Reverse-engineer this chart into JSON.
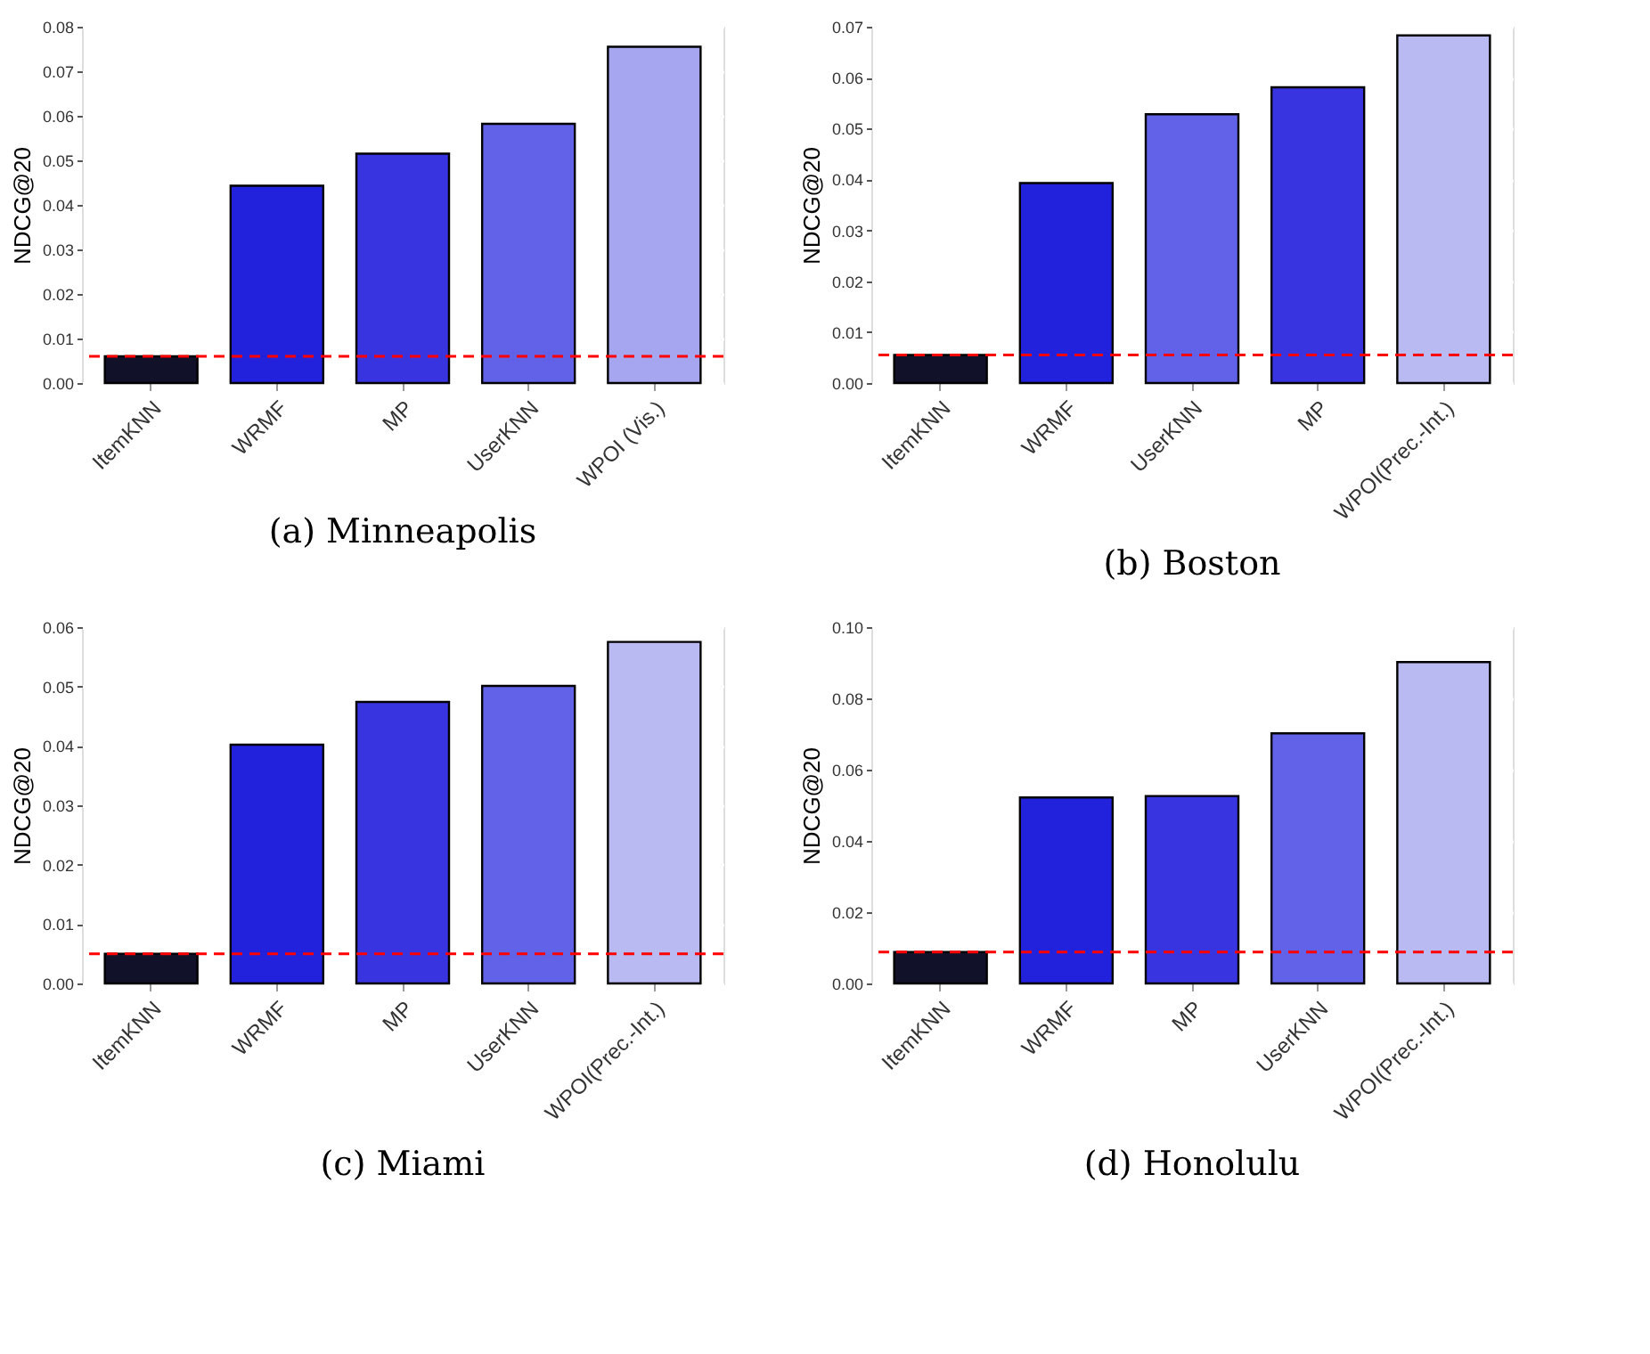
{
  "chart_data": [
    {
      "type": "bar",
      "title": "(a) Minneapolis",
      "ylabel": "NDCG@20",
      "categories": [
        "ItemKNN",
        "WRMF",
        "MP",
        "UserKNN",
        "WPOI (Vis.)"
      ],
      "values": [
        0.006,
        0.0443,
        0.0515,
        0.0582,
        0.0755
      ],
      "colors": [
        "#11112a",
        "#2222dd",
        "#3835e0",
        "#6262e8",
        "#a6a6f0"
      ],
      "ylim": [
        0,
        0.08
      ],
      "yticks": [
        {
          "value": 0,
          "label": "0.00"
        },
        {
          "value": 0.01,
          "label": "0.01"
        },
        {
          "value": 0.02,
          "label": "0.02"
        },
        {
          "value": 0.03,
          "label": "0.03"
        },
        {
          "value": 0.04,
          "label": "0.04"
        },
        {
          "value": 0.05,
          "label": "0.05"
        },
        {
          "value": 0.06,
          "label": "0.06"
        },
        {
          "value": 0.07,
          "label": "0.07"
        },
        {
          "value": 0.08,
          "label": "0.08"
        }
      ],
      "grid": "y",
      "ref_lines": [
        {
          "axis": "y",
          "value": 0.006,
          "color": "#ff0000",
          "line_style": "dashed"
        }
      ]
    },
    {
      "type": "bar",
      "title": "(b) Boston",
      "ylabel": "NDCG@20",
      "categories": [
        "ItemKNN",
        "WRMF",
        "UserKNN",
        "MP",
        "WPOI(Prec.-Int.)"
      ],
      "values": [
        0.0055,
        0.0393,
        0.0528,
        0.0581,
        0.0683
      ],
      "colors": [
        "#11112a",
        "#2222dd",
        "#6262e8",
        "#3835e0",
        "#babaf2"
      ],
      "ylim": [
        0,
        0.07
      ],
      "yticks": [
        {
          "value": 0,
          "label": "0.00"
        },
        {
          "value": 0.01,
          "label": "0.01"
        },
        {
          "value": 0.02,
          "label": "0.02"
        },
        {
          "value": 0.03,
          "label": "0.03"
        },
        {
          "value": 0.04,
          "label": "0.04"
        },
        {
          "value": 0.05,
          "label": "0.05"
        },
        {
          "value": 0.06,
          "label": "0.06"
        },
        {
          "value": 0.07,
          "label": "0.07"
        }
      ],
      "grid": "y",
      "ref_lines": [
        {
          "axis": "y",
          "value": 0.0055,
          "color": "#ff0000",
          "line_style": "dashed"
        }
      ]
    },
    {
      "type": "bar",
      "title": "(c) Miami",
      "ylabel": "NDCG@20",
      "categories": [
        "ItemKNN",
        "WRMF",
        "MP",
        "UserKNN",
        "WPOI(Prec.-Int.)"
      ],
      "values": [
        0.005,
        0.0402,
        0.0474,
        0.0501,
        0.0575
      ],
      "colors": [
        "#11112a",
        "#2222dd",
        "#3835e0",
        "#6262e8",
        "#babaf2"
      ],
      "ylim": [
        0,
        0.06
      ],
      "yticks": [
        {
          "value": 0,
          "label": "0.00"
        },
        {
          "value": 0.01,
          "label": "0.01"
        },
        {
          "value": 0.02,
          "label": "0.02"
        },
        {
          "value": 0.03,
          "label": "0.03"
        },
        {
          "value": 0.04,
          "label": "0.04"
        },
        {
          "value": 0.05,
          "label": "0.05"
        },
        {
          "value": 0.06,
          "label": "0.06"
        }
      ],
      "grid": "y",
      "ref_lines": [
        {
          "axis": "y",
          "value": 0.005,
          "color": "#ff0000",
          "line_style": "dashed"
        }
      ]
    },
    {
      "type": "bar",
      "title": "(d) Honolulu",
      "ylabel": "NDCG@20",
      "categories": [
        "ItemKNN",
        "WRMF",
        "MP",
        "UserKNN",
        "WPOI(Prec.-Int.)"
      ],
      "values": [
        0.0088,
        0.0522,
        0.0526,
        0.0702,
        0.0902
      ],
      "colors": [
        "#11112a",
        "#2222dd",
        "#3835e0",
        "#6262e8",
        "#babaf2"
      ],
      "ylim": [
        0,
        0.1
      ],
      "yticks": [
        {
          "value": 0,
          "label": "0.00"
        },
        {
          "value": 0.02,
          "label": "0.02"
        },
        {
          "value": 0.04,
          "label": "0.04"
        },
        {
          "value": 0.06,
          "label": "0.06"
        },
        {
          "value": 0.08,
          "label": "0.08"
        },
        {
          "value": 0.1,
          "label": "0.10"
        }
      ],
      "grid": "y",
      "ref_lines": [
        {
          "axis": "y",
          "value": 0.0088,
          "color": "#ff0000",
          "line_style": "dashed"
        }
      ]
    }
  ]
}
